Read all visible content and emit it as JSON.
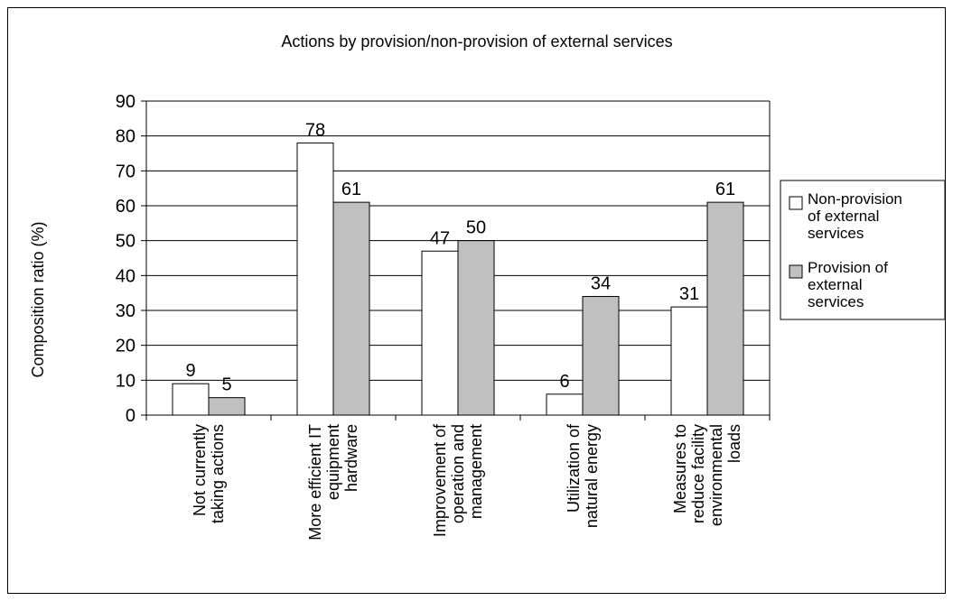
{
  "chart_data": {
    "type": "bar",
    "title": "Actions by provision/non-provision of external services",
    "xlabel": "",
    "ylabel": "Composition ratio (%)",
    "ylim": [
      0,
      90
    ],
    "yticks": [
      0,
      10,
      20,
      30,
      40,
      50,
      60,
      70,
      80,
      90
    ],
    "grid": true,
    "legend_position": "right",
    "categories": [
      [
        "Not currently",
        "taking actions"
      ],
      [
        "More efficient IT",
        "equipment",
        "hardware"
      ],
      [
        "Improvement of",
        "operation and",
        "management"
      ],
      [
        "Utilization of",
        "natural energy"
      ],
      [
        "Measures to",
        "reduce facility",
        "environmental",
        "loads"
      ]
    ],
    "series": [
      {
        "name": "Non-provision of external services",
        "legend_lines": [
          "Non-provision",
          "of external",
          "services"
        ],
        "color": "#ffffff",
        "values": [
          9,
          78,
          47,
          6,
          31
        ]
      },
      {
        "name": "Provision of external services",
        "legend_lines": [
          "Provision of",
          "external",
          "services"
        ],
        "color": "#c0c0c0",
        "values": [
          5,
          61,
          50,
          34,
          61
        ]
      }
    ]
  }
}
